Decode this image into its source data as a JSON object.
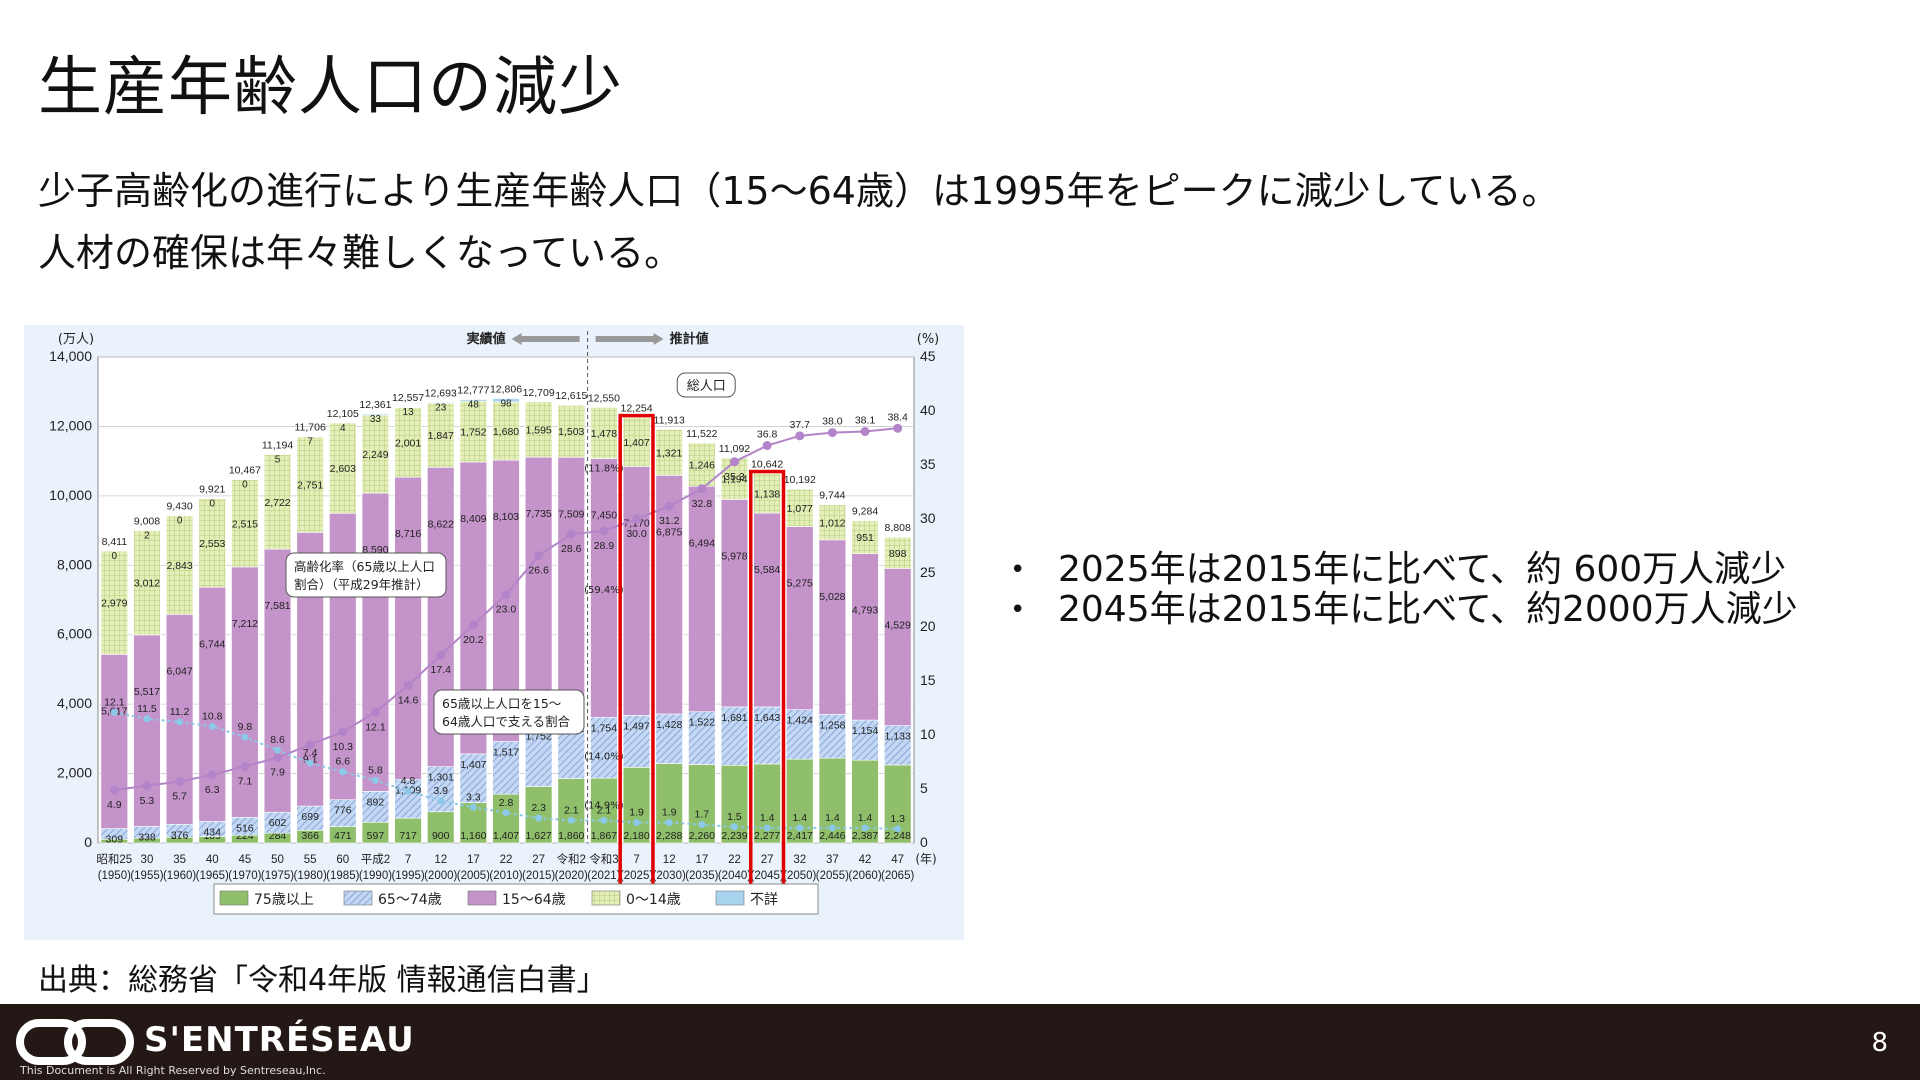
{
  "slide": {
    "title": "生産年齢人口の減少",
    "intro_lines": [
      "少子高齢化の進行により生産年齢人口（15～64歳）は1995年をピークに減少している。",
      "人材の確保は年々難しくなっている。"
    ],
    "bullets": [
      "2025年は2015年に比べて、約 600万人減少",
      "2045年は2015年に比べて、約2000万人減少"
    ],
    "source": "出典：総務省「令和4年版 情報通信白書」",
    "page_number": "8"
  },
  "footer": {
    "brand": "S'ENTRÉSEAU",
    "copyright": "This Document is All Right Reserved by Sentreseau,Inc.",
    "logo_icon": "double-ring-logo-icon",
    "background": "#231815"
  },
  "chart_data": {
    "type": "bar",
    "stacked": true,
    "left_unit": "(万人)",
    "right_unit": "(%)",
    "year_unit": "(年)",
    "yleft_ticks": [
      "0",
      "2,000",
      "4,000",
      "6,000",
      "8,000",
      "10,000",
      "12,000",
      "14,000"
    ],
    "yright_ticks": [
      "0",
      "5",
      "10",
      "15",
      "20",
      "25",
      "30",
      "35",
      "40",
      "45"
    ],
    "ylim_left": [
      0,
      14000
    ],
    "ylim_right": [
      0,
      45
    ],
    "actual_label": "実績値",
    "projection_label": "推計値",
    "categories_era": [
      "昭和25",
      "30",
      "35",
      "40",
      "45",
      "50",
      "55",
      "60",
      "平成2",
      "7",
      "12",
      "17",
      "22",
      "27",
      "令和2",
      "令和3",
      "7",
      "12",
      "17",
      "22",
      "27",
      "32",
      "37",
      "42",
      "47"
    ],
    "categories_year": [
      "(1950)",
      "(1955)",
      "(1960)",
      "(1965)",
      "(1970)",
      "(1975)",
      "(1980)",
      "(1985)",
      "(1990)",
      "(1995)",
      "(2000)",
      "(2005)",
      "(2010)",
      "(2015)",
      "(2020)",
      "(2021)",
      "(2025)",
      "(2030)",
      "(2035)",
      "(2040)",
      "(2045)",
      "(2050)",
      "(2055)",
      "(2060)",
      "(2065)"
    ],
    "series": [
      {
        "name": "75歳以上",
        "color": "#8fbf6a",
        "values": [
          107,
          139,
          164,
          189,
          224,
          284,
          366,
          471,
          597,
          717,
          900,
          1160,
          1407,
          1627,
          1860,
          1867,
          2180,
          2288,
          2260,
          2239,
          2277,
          2417,
          2446,
          2387,
          2248
        ],
        "labels": [
          "107",
          "139",
          "164",
          "189",
          "224",
          "284",
          "366",
          "471",
          "597",
          "717",
          "900",
          "1,160",
          "1,407",
          "1,627",
          "1,860",
          "1,867",
          "2,180",
          "2,288",
          "2,260",
          "2,239",
          "2,277",
          "2,417",
          "2,446",
          "2,387",
          "2,248"
        ]
      },
      {
        "name": "65～74歳",
        "color": "#a9c6ee",
        "values": [
          309,
          338,
          376,
          434,
          516,
          602,
          699,
          776,
          892,
          1109,
          1301,
          1407,
          1517,
          1752,
          1742,
          1754,
          1497,
          1428,
          1522,
          1681,
          1643,
          1424,
          1258,
          1154,
          1133
        ],
        "labels": [
          "309",
          "338",
          "376",
          "434",
          "516",
          "602",
          "699",
          "776",
          "892",
          "1,109",
          "1,301",
          "1,407",
          "1,517",
          "1,752",
          "1,742",
          "1,754",
          "1,497",
          "1,428",
          "1,522",
          "1,681",
          "1,643",
          "1,424",
          "1,258",
          "1,154",
          "1,133"
        ]
      },
      {
        "name": "15～64歳",
        "color": "#c493c9",
        "values": [
          5017,
          5517,
          6047,
          6744,
          7212,
          7581,
          7883,
          8251,
          8590,
          8716,
          8622,
          8409,
          8103,
          7735,
          7509,
          7450,
          7170,
          6875,
          6494,
          5978,
          5584,
          5275,
          5028,
          4793,
          4529
        ],
        "labels": [
          "5,017",
          "5,517",
          "6,047",
          "6,744",
          "7,212",
          "7,581",
          "7,883",
          "8,251",
          "8,590",
          "8,716",
          "8,622",
          "8,409",
          "8,103",
          "7,735",
          "7,509",
          "7,450",
          "7,170",
          "6,875",
          "6,494",
          "5,978",
          "5,584",
          "5,275",
          "5,028",
          "4,793",
          "4,529"
        ]
      },
      {
        "name": "0～14歳",
        "color": "#d6e6a4",
        "values": [
          2979,
          3012,
          2843,
          2553,
          2515,
          2722,
          2751,
          2603,
          2249,
          2001,
          1847,
          1752,
          1680,
          1595,
          1503,
          1478,
          1407,
          1321,
          1246,
          1194,
          1138,
          1077,
          1012,
          951,
          898
        ],
        "labels": [
          "2,979",
          "3,012",
          "2,843",
          "2,553",
          "2,515",
          "2,722",
          "2,751",
          "2,603",
          "2,249",
          "2,001",
          "1,847",
          "1,752",
          "1,680",
          "1,595",
          "1,503",
          "1,478",
          "1,407",
          "1,321",
          "1,246",
          "1,194",
          "1,138",
          "1,077",
          "1,012",
          "951",
          "898"
        ]
      },
      {
        "name": "不詳",
        "color": "#a8d4f0",
        "values": [
          0,
          2,
          0,
          0,
          0,
          5,
          7,
          4,
          33,
          13,
          23,
          48,
          98,
          0,
          0,
          0,
          0,
          0,
          0,
          0,
          0,
          0,
          0,
          0,
          0
        ],
        "labels": [
          "0",
          "2",
          "0",
          "0",
          "0",
          "5",
          "7",
          "4",
          "33",
          "13",
          "23",
          "48",
          "98",
          "",
          "",
          "",
          "",
          "",
          "",
          "",
          "",
          "",
          "",
          "",
          ""
        ]
      }
    ],
    "totals": [
      "8,411",
      "9,008",
      "9,430",
      "9,921",
      "10,467",
      "11,194",
      "11,706",
      "12,105",
      "12,361",
      "12,557",
      "12,693",
      "12,777",
      "12,806",
      "12,709",
      "12,615",
      "12,550",
      "12,254",
      "11,913",
      "11,522",
      "11,092",
      "10,642",
      "10,192",
      "9,744",
      "9,284",
      "8,808"
    ],
    "aging_rate": {
      "name": "高齢化率（65歳以上人口割合）（平成29年推計）",
      "color": "#b384c9",
      "values": [
        4.9,
        5.3,
        5.7,
        6.3,
        7.1,
        7.9,
        9.1,
        10.3,
        12.1,
        14.6,
        17.4,
        20.2,
        23.0,
        26.6,
        28.6,
        28.9,
        30.0,
        31.2,
        32.8,
        35.3,
        36.8,
        37.7,
        38.0,
        38.1,
        38.4
      ],
      "labels": [
        "4.9",
        "5.3",
        "5.7",
        "6.3",
        "7.1",
        "7.9",
        "9.1",
        "10.3",
        "12.1",
        "14.6",
        "17.4",
        "20.2",
        "23.0",
        "26.6",
        "28.6",
        "28.9",
        "30.0",
        "31.2",
        "32.8",
        "35.3",
        "36.8",
        "37.7",
        "38.0",
        "38.1",
        "38.4"
      ]
    },
    "support_ratio": {
      "name": "65歳以上人口を15～64歳人口で支える割合",
      "color": "#8cc8e8",
      "values": [
        12.1,
        11.5,
        11.2,
        10.8,
        9.8,
        8.6,
        7.4,
        6.6,
        5.8,
        4.8,
        3.9,
        3.3,
        2.8,
        2.3,
        2.1,
        2.1,
        1.9,
        1.9,
        1.7,
        1.5,
        1.4,
        1.4,
        1.4,
        1.4,
        1.3
      ],
      "labels": [
        "12.1",
        "11.5",
        "11.2",
        "10.8",
        "9.8",
        "8.6",
        "7.4",
        "6.6",
        "5.8",
        "4.8",
        "3.9",
        "3.3",
        "2.8",
        "2.3",
        "2.1",
        "2.1",
        "1.9",
        "1.9",
        "1.7",
        "1.5",
        "1.4",
        "1.4",
        "1.4",
        "1.4",
        "1.3"
      ]
    },
    "annotations": {
      "total_pop": "総人口",
      "aging_line1": "高齢化率（65歳以上人口",
      "aging_line2": "割合）（平成29年推計）",
      "support_line1": "65歳以上人口を15～",
      "support_line2": "64歳人口で支える割合",
      "share_2021_0_14": "(11.8%)",
      "share_2021_15_64": "(59.4%)",
      "share_2021_65_74": "(14.0%)",
      "share_2021_75": "(14.9%)"
    },
    "highlighted_years": [
      "(2025)",
      "(2045)"
    ],
    "highlight_color": "#e00000"
  }
}
